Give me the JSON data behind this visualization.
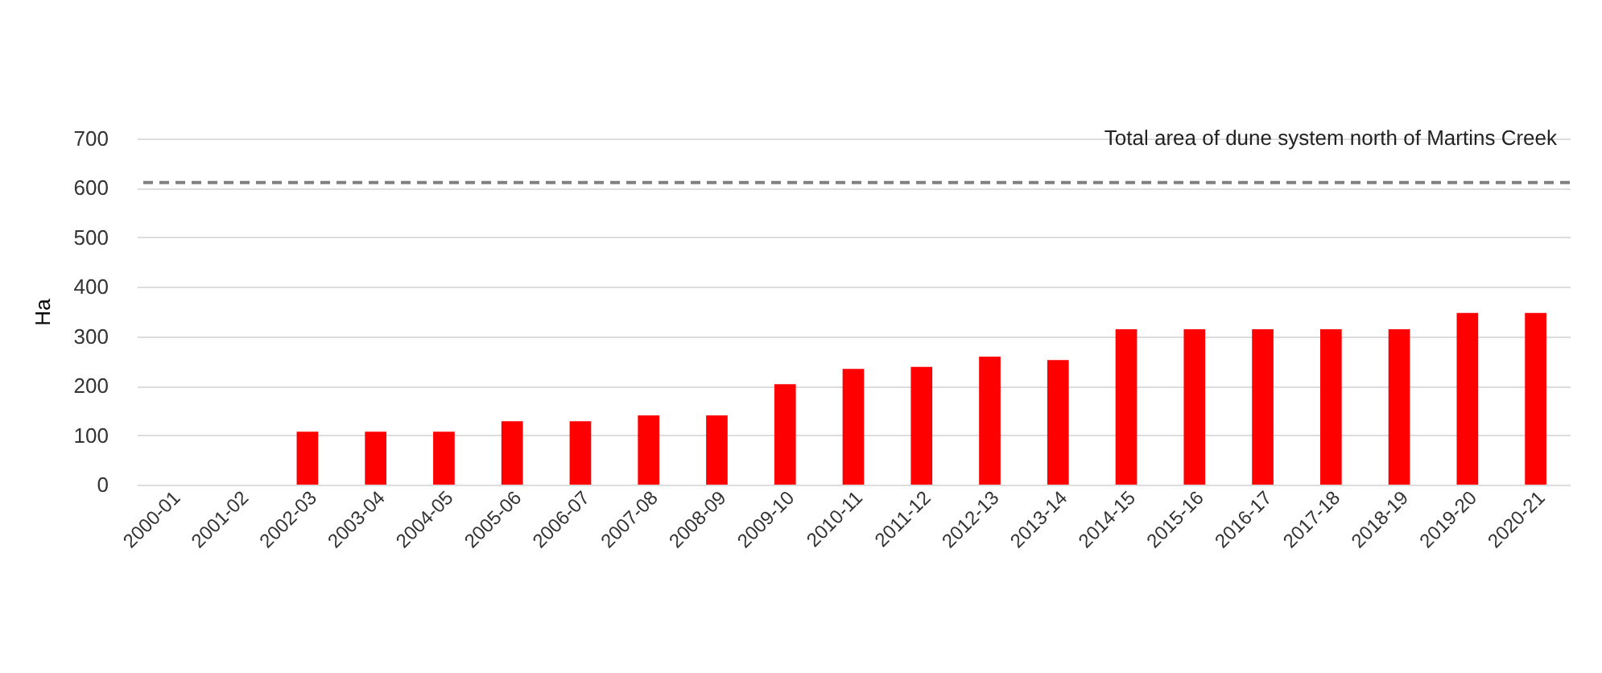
{
  "chart_data": {
    "type": "bar",
    "ylabel": "Ha",
    "categories": [
      "2000-01",
      "2001-02",
      "2002-03",
      "2003-04",
      "2004-05",
      "2005-06",
      "2006-07",
      "2007-08",
      "2008-09",
      "2009-10",
      "2010-11",
      "2011-12",
      "2012-13",
      "2013-14",
      "2014-15",
      "2015-16",
      "2016-17",
      "2017-18",
      "2018-19",
      "2019-20",
      "2020-21"
    ],
    "values": [
      null,
      null,
      107,
      107,
      107,
      128,
      128,
      140,
      140,
      203,
      234,
      238,
      259,
      252,
      314,
      314,
      314,
      314,
      314,
      347,
      347
    ],
    "color": "#ff0000",
    "ylim": [
      0,
      700
    ],
    "yticks": [
      0,
      100,
      200,
      300,
      400,
      500,
      600,
      700
    ],
    "grid": "y",
    "ref_lines": [
      {
        "axis": "y",
        "value": 611,
        "label": "Total area of dune system north of Martins Creek",
        "color": "#808080",
        "line_style": "dashed"
      }
    ]
  }
}
